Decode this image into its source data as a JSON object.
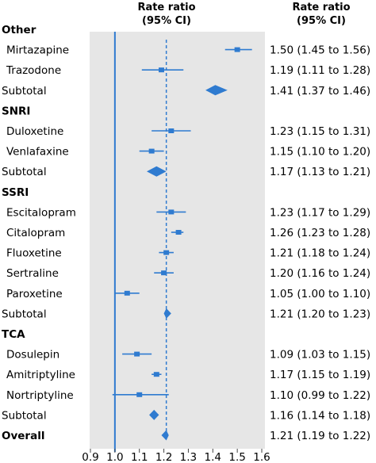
{
  "chart_data": {
    "type": "forest",
    "headers": {
      "plot_line1": "Rate ratio",
      "plot_line2": "(95% CI)",
      "col_line1": "Rate ratio",
      "col_line2": "(95% CI)"
    },
    "x_ticks": [
      "0.9",
      "1.0",
      "1.1",
      "1.2",
      "1.3",
      "1.4",
      "1.5",
      "1.6"
    ],
    "xlim": [
      0.9,
      1.6
    ],
    "reference_line": 1.0,
    "overall_line": 1.21,
    "colors": {
      "marker": "#2f7bd0",
      "panel": "#e6e6e6"
    },
    "rows": [
      {
        "kind": "group",
        "label": "Other"
      },
      {
        "kind": "study",
        "label": "Mirtazapine",
        "est": 1.5,
        "lo": 1.45,
        "hi": 1.56,
        "ci_text": "1.50 (1.45 to 1.56)"
      },
      {
        "kind": "study",
        "label": "Trazodone",
        "est": 1.19,
        "lo": 1.11,
        "hi": 1.28,
        "ci_text": "1.19 (1.11 to 1.28)"
      },
      {
        "kind": "subtotal",
        "label": "Subtotal",
        "est": 1.41,
        "lo": 1.37,
        "hi": 1.46,
        "ci_text": "1.41 (1.37 to 1.46)"
      },
      {
        "kind": "group",
        "label": "SNRI"
      },
      {
        "kind": "study",
        "label": "Duloxetine",
        "est": 1.23,
        "lo": 1.15,
        "hi": 1.31,
        "ci_text": "1.23 (1.15 to 1.31)"
      },
      {
        "kind": "study",
        "label": "Venlafaxine",
        "est": 1.15,
        "lo": 1.1,
        "hi": 1.2,
        "ci_text": "1.15 (1.10 to 1.20)"
      },
      {
        "kind": "subtotal",
        "label": "Subtotal",
        "est": 1.17,
        "lo": 1.13,
        "hi": 1.21,
        "ci_text": "1.17 (1.13 to 1.21)"
      },
      {
        "kind": "group",
        "label": "SSRI"
      },
      {
        "kind": "study",
        "label": "Escitalopram",
        "est": 1.23,
        "lo": 1.17,
        "hi": 1.29,
        "ci_text": "1.23 (1.17 to 1.29)"
      },
      {
        "kind": "study",
        "label": "Citalopram",
        "est": 1.26,
        "lo": 1.23,
        "hi": 1.28,
        "ci_text": "1.26 (1.23 to 1.28)"
      },
      {
        "kind": "study",
        "label": "Fluoxetine",
        "est": 1.21,
        "lo": 1.18,
        "hi": 1.24,
        "ci_text": "1.21 (1.18 to 1.24)"
      },
      {
        "kind": "study",
        "label": "Sertraline",
        "est": 1.2,
        "lo": 1.16,
        "hi": 1.24,
        "ci_text": "1.20 (1.16 to 1.24)"
      },
      {
        "kind": "study",
        "label": "Paroxetine",
        "est": 1.05,
        "lo": 1.0,
        "hi": 1.1,
        "ci_text": "1.05 (1.00 to 1.10)"
      },
      {
        "kind": "subtotal",
        "label": "Subtotal",
        "est": 1.21,
        "lo": 1.2,
        "hi": 1.23,
        "ci_text": "1.21 (1.20 to 1.23)"
      },
      {
        "kind": "group",
        "label": "TCA"
      },
      {
        "kind": "study",
        "label": "Dosulepin",
        "est": 1.09,
        "lo": 1.03,
        "hi": 1.15,
        "ci_text": "1.09 (1.03 to 1.15)"
      },
      {
        "kind": "study",
        "label": "Amitriptyline",
        "est": 1.17,
        "lo": 1.15,
        "hi": 1.19,
        "ci_text": "1.17 (1.15 to 1.19)"
      },
      {
        "kind": "study",
        "label": "Nortriptyline",
        "est": 1.1,
        "lo": 0.99,
        "hi": 1.22,
        "ci_text": "1.10 (0.99 to 1.22)"
      },
      {
        "kind": "subtotal",
        "label": "Subtotal",
        "est": 1.16,
        "lo": 1.14,
        "hi": 1.18,
        "ci_text": "1.16 (1.14 to 1.18)"
      },
      {
        "kind": "overall",
        "label": "Overall",
        "est": 1.21,
        "lo": 1.19,
        "hi": 1.22,
        "ci_text": "1.21 (1.19 to 1.22)"
      }
    ]
  }
}
